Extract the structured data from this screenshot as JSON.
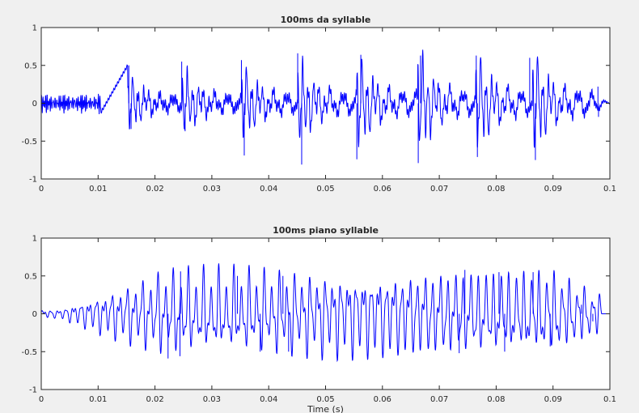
{
  "chart_data": [
    {
      "type": "line",
      "title": "100ms da syllable",
      "xlabel": "",
      "ylabel": "",
      "xlim": [
        0,
        0.1
      ],
      "ylim": [
        -1,
        1
      ],
      "x_ticks": [
        "0",
        "0.01",
        "0.02",
        "0.03",
        "0.04",
        "0.05",
        "0.06",
        "0.07",
        "0.08",
        "0.09",
        "0.1"
      ],
      "y_ticks": [
        "-1",
        "-0.5",
        "0",
        "0.5",
        "1"
      ],
      "series_color": "#0000ff",
      "grid": false,
      "peaks": [
        [
          0.0154,
          0.5
        ],
        [
          0.0158,
          -0.34
        ],
        [
          0.0247,
          0.55
        ],
        [
          0.0253,
          -0.37
        ],
        [
          0.0352,
          0.57
        ],
        [
          0.0357,
          -0.69
        ],
        [
          0.0451,
          0.66
        ],
        [
          0.0458,
          -0.81
        ],
        [
          0.0562,
          0.64
        ],
        [
          0.0555,
          -0.74
        ],
        [
          0.0667,
          0.63
        ],
        [
          0.0663,
          -0.79
        ],
        [
          0.0765,
          0.63
        ],
        [
          0.0767,
          -0.71
        ],
        [
          0.0859,
          0.6
        ],
        [
          0.0869,
          -0.75
        ],
        [
          0.0979,
          0.22
        ],
        [
          0.098,
          -0.18
        ]
      ]
    },
    {
      "type": "line",
      "title": "100ms piano syllable",
      "xlabel": "Time (s)",
      "ylabel": "",
      "xlim": [
        0,
        0.1
      ],
      "ylim": [
        -1,
        1
      ],
      "x_ticks": [
        "0",
        "0.01",
        "0.02",
        "0.03",
        "0.04",
        "0.05",
        "0.06",
        "0.07",
        "0.08",
        "0.09",
        "0.1"
      ],
      "y_ticks": [
        "-1",
        "-0.5",
        "0",
        "0.5",
        "1"
      ],
      "series_color": "#0000ff",
      "grid": false,
      "peaks": [
        [
          0.0245,
          0.56
        ],
        [
          0.0223,
          -0.59
        ],
        [
          0.0244,
          -0.56
        ],
        [
          0.0345,
          0.5
        ],
        [
          0.0385,
          -0.5
        ],
        [
          0.0425,
          0.5
        ],
        [
          0.0435,
          -0.5
        ],
        [
          0.0745,
          0.58
        ],
        [
          0.0735,
          -0.52
        ],
        [
          0.0805,
          0.55
        ],
        [
          0.0865,
          0.55
        ],
        [
          0.0815,
          -0.5
        ],
        [
          0.0895,
          -0.43
        ],
        [
          0.095,
          0.12
        ],
        [
          0.097,
          -0.1
        ]
      ]
    }
  ]
}
